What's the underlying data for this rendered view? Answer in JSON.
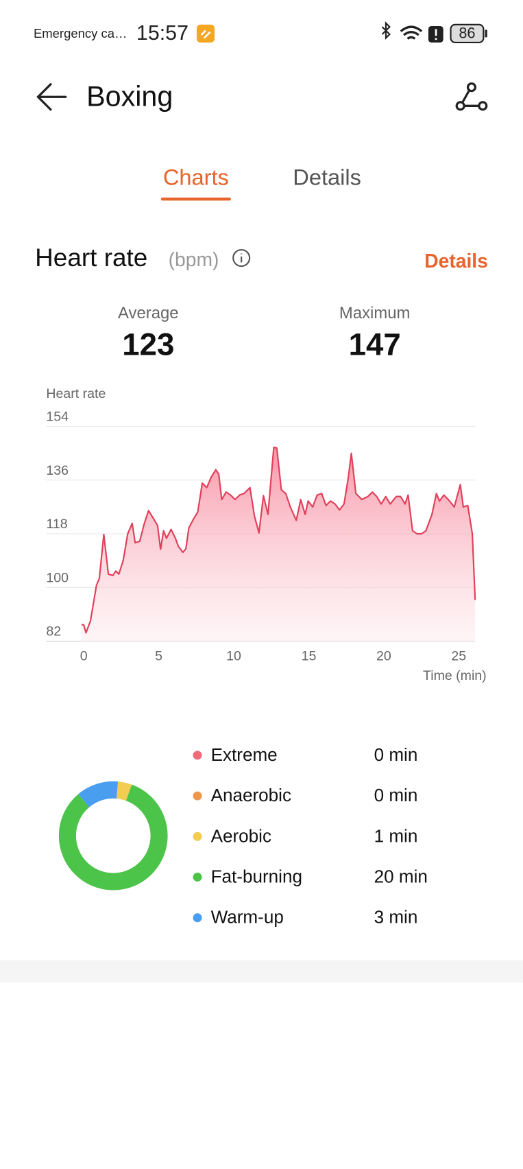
{
  "status_bar": {
    "notification": "Emergency ca…",
    "time": "15:57",
    "battery": "86"
  },
  "header": {
    "title": "Boxing"
  },
  "tabs": [
    "Charts",
    "Details"
  ],
  "section": {
    "title": "Heart rate",
    "unit": "(bpm)",
    "link": "Details"
  },
  "stats": [
    {
      "label": "Average",
      "value": "123"
    },
    {
      "label": "Maximum",
      "value": "147"
    }
  ],
  "chart_data": [
    {
      "type": "line",
      "ylabel": "Heart rate",
      "xlabel": "Time (min)",
      "color": "#e0405a",
      "xlim": [
        -2.5,
        26.1
      ],
      "xticks": [
        0,
        5,
        10,
        15,
        20,
        25
      ],
      "ylim": [
        82,
        154
      ],
      "yticks": [
        82,
        100,
        118,
        136,
        154
      ],
      "grid": true,
      "x": [
        -0.15,
        0,
        0.15,
        0.45,
        0.85,
        1.04,
        1.34,
        1.64,
        1.94,
        2.14,
        2.34,
        2.63,
        2.93,
        3.23,
        3.43,
        3.73,
        4.03,
        4.32,
        4.72,
        4.92,
        5.12,
        5.32,
        5.52,
        5.82,
        6.11,
        6.31,
        6.61,
        6.81,
        7.01,
        7.3,
        7.6,
        7.9,
        8.2,
        8.5,
        8.8,
        9.0,
        9.2,
        9.49,
        9.79,
        10.09,
        10.39,
        10.69,
        11.08,
        11.38,
        11.68,
        11.98,
        12.28,
        12.67,
        12.87,
        13.17,
        13.47,
        13.77,
        14.17,
        14.46,
        14.76,
        14.96,
        15.26,
        15.56,
        15.86,
        16.15,
        16.45,
        16.75,
        17.05,
        17.35,
        17.64,
        17.84,
        18.14,
        18.54,
        18.94,
        19.24,
        19.53,
        19.83,
        20.13,
        20.43,
        20.83,
        21.12,
        21.42,
        21.62,
        21.92,
        22.22,
        22.51,
        22.81,
        23.21,
        23.51,
        23.71,
        24.01,
        24.3,
        24.7,
        25.1,
        25.3,
        25.6,
        25.9,
        26.09
      ],
      "values": [
        87.5,
        87.5,
        84.8,
        88.8,
        100.8,
        103,
        117.8,
        104.5,
        104,
        105.5,
        104.5,
        109,
        118,
        121.5,
        115,
        115.5,
        121.3,
        125.8,
        122.5,
        120.8,
        112.8,
        119,
        116.5,
        119.5,
        116.5,
        113.8,
        111.8,
        113,
        120,
        122.8,
        125.3,
        135,
        133.5,
        137,
        139.5,
        138,
        129.5,
        132,
        131,
        129.5,
        131,
        131.5,
        133.5,
        124,
        118.3,
        130.8,
        124.5,
        147,
        146.8,
        132.8,
        131.5,
        127,
        122.5,
        129.5,
        124.5,
        129,
        127,
        131,
        131.5,
        127.5,
        129,
        128,
        126,
        128,
        137,
        145,
        131.5,
        129.5,
        130.5,
        132,
        130.5,
        128,
        130.5,
        128,
        130.5,
        130.5,
        128,
        131,
        119,
        118,
        118,
        119,
        124.5,
        131.5,
        129,
        131,
        129.5,
        127,
        134.5,
        127,
        127.5,
        118,
        95.8
      ]
    },
    {
      "type": "pie",
      "categories": [
        "Extreme",
        "Anaerobic",
        "Aerobic",
        "Fat-burning",
        "Warm-up"
      ],
      "values": [
        0,
        0,
        1,
        20,
        3
      ],
      "value_labels": [
        "0 min",
        "0 min",
        "1 min",
        "20 min",
        "3 min"
      ],
      "colors": [
        "#f06a78",
        "#f0964a",
        "#f3cc52",
        "#4cc44a",
        "#4a9ef0"
      ]
    }
  ]
}
